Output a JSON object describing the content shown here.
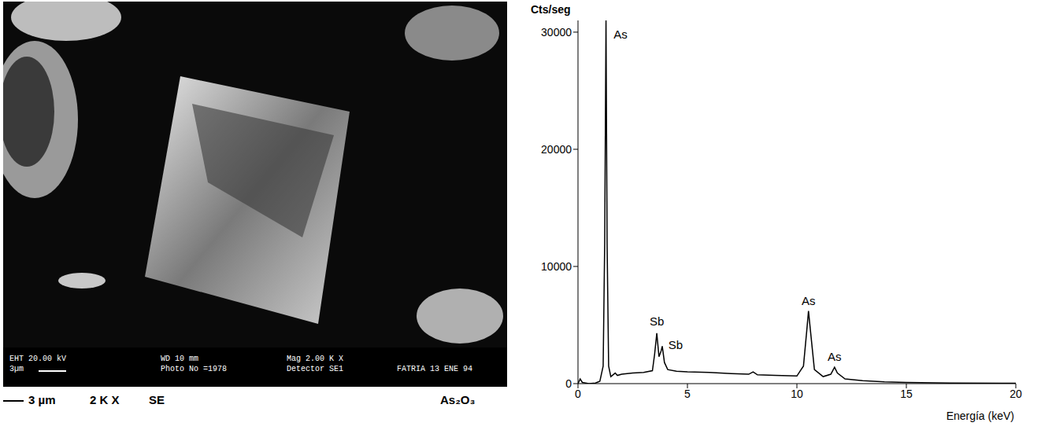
{
  "image": {
    "caption": {
      "scale": "3 µm",
      "magnification": "2 K X",
      "detector": "SE",
      "compound": "As₂O₃"
    },
    "databar": [
      "EHT 20.00 kV",
      "3µm",
      "WD 10 mm",
      "Photo No =1978",
      "Mag 2.00 K X",
      "Detector SE1",
      "FATRIA 13 ENE 94"
    ]
  },
  "chart_data": {
    "type": "line",
    "y_label": "Cts/seg",
    "x_label": "Energía (keV)",
    "xlim": [
      0,
      20
    ],
    "xticks": [
      0,
      5,
      10,
      15,
      20
    ],
    "ylim": [
      0,
      31000
    ],
    "yticks": [
      0,
      10000,
      20000,
      30000
    ],
    "grid": false,
    "color": "#000000",
    "x": [
      0,
      0.1,
      0.2,
      0.5,
      0.8,
      1.0,
      1.15,
      1.22,
      1.28,
      1.33,
      1.4,
      1.5,
      1.7,
      1.8,
      2.0,
      2.5,
      3.0,
      3.4,
      3.5,
      3.6,
      3.7,
      3.8,
      3.85,
      3.95,
      4.1,
      4.5,
      5,
      6,
      7,
      7.8,
      8.0,
      8.2,
      9,
      10,
      10.3,
      10.45,
      10.53,
      10.62,
      10.8,
      11.2,
      11.55,
      11.72,
      11.85,
      12.2,
      13,
      14,
      15,
      17,
      20
    ],
    "values": [
      0,
      400,
      100,
      0,
      50,
      200,
      1500,
      12000,
      31000,
      12000,
      1500,
      600,
      900,
      700,
      800,
      900,
      950,
      1100,
      2500,
      4300,
      2300,
      2800,
      3200,
      1800,
      1200,
      1050,
      1000,
      950,
      850,
      800,
      1000,
      750,
      700,
      650,
      1500,
      4500,
      6200,
      4500,
      1200,
      600,
      800,
      1400,
      900,
      400,
      250,
      150,
      100,
      50,
      30
    ],
    "annotations": [
      {
        "text": "As",
        "x": 1.45,
        "y": 29800
      },
      {
        "text": "Sb",
        "x": 3.6,
        "y": 4600
      },
      {
        "text": "Sb",
        "x": 3.95,
        "y": 3300
      },
      {
        "text": "As",
        "x": 10.53,
        "y": 6400
      },
      {
        "text": "As",
        "x": 11.72,
        "y": 1600
      }
    ]
  }
}
